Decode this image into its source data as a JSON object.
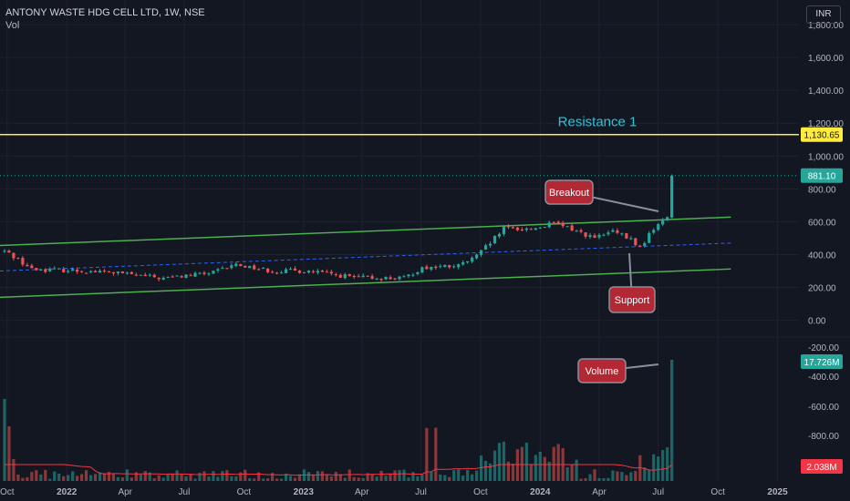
{
  "header": {
    "title": "ANTONY WASTE HDG CELL LTD, 1W, NSE",
    "indicator": "Vol",
    "currency": "INR"
  },
  "colors": {
    "background": "#131722",
    "grid": "#1e222d",
    "up": "#26a69a",
    "down": "#ef5350",
    "channel": "#4caf50",
    "midline": "#2962ff",
    "resistance": "#ffeb3b",
    "callout": "#b22834",
    "annotation_text": "#26c6da",
    "volume_ma": "#f23645"
  },
  "chart_data": {
    "type": "candlestick",
    "interval": "1W",
    "exchange": "NSE",
    "price_axis": {
      "ticks": [
        1800,
        1600,
        1400,
        1200,
        1000,
        800,
        600,
        400,
        200,
        0
      ],
      "tick_labels": [
        "1,800.00",
        "1,600.00",
        "1,400.00",
        "1,200.00",
        "1,000.00",
        "800.00",
        "600.00",
        "400.00",
        "200.00",
        "0.00"
      ],
      "range": [
        -130,
        1950
      ]
    },
    "volume_axis": {
      "tick_labels": [
        "-200.00",
        "-400.00",
        "-600.00",
        "-800.00"
      ]
    },
    "x_axis": {
      "tick_labels": [
        "Oct",
        "2022",
        "Apr",
        "Jul",
        "Oct",
        "2023",
        "Apr",
        "Jul",
        "Oct",
        "2024",
        "Apr",
        "Jul",
        "Oct",
        "2025"
      ],
      "range": [
        "2021-09-20",
        "2025-02-03"
      ]
    },
    "price_labels": {
      "resistance": "1,130.65",
      "last_price": "881.10",
      "last_volume": "17.726M",
      "volume_ma": "2.038M"
    },
    "levels": {
      "resistance": 1130.65,
      "last_price": 881.1
    },
    "channel": {
      "upper": [
        {
          "date": "2021-09-20",
          "value": 455
        },
        {
          "date": "2024-10-21",
          "value": 628
        }
      ],
      "lower": [
        {
          "date": "2021-09-20",
          "value": 140
        },
        {
          "date": "2024-10-21",
          "value": 312
        }
      ],
      "middle": [
        {
          "date": "2021-09-20",
          "value": 300
        },
        {
          "date": "2024-10-21",
          "value": 470
        }
      ]
    },
    "annotations": [
      {
        "text": "Resistance 1"
      },
      {
        "text": "Breakout"
      },
      {
        "text": "Support"
      },
      {
        "text": "Volume"
      }
    ],
    "series": [
      {
        "name": "price",
        "anchors": [
          {
            "date": "2021-09-27",
            "value": 420
          },
          {
            "date": "2021-10-11",
            "value": 390
          },
          {
            "date": "2021-11-08",
            "value": 310
          },
          {
            "date": "2022-01-03",
            "value": 305
          },
          {
            "date": "2022-03-14",
            "value": 290
          },
          {
            "date": "2022-05-30",
            "value": 255
          },
          {
            "date": "2022-08-15",
            "value": 290
          },
          {
            "date": "2022-09-19",
            "value": 340
          },
          {
            "date": "2022-11-14",
            "value": 300
          },
          {
            "date": "2023-01-09",
            "value": 300
          },
          {
            "date": "2023-03-20",
            "value": 260
          },
          {
            "date": "2023-06-05",
            "value": 255
          },
          {
            "date": "2023-07-03",
            "value": 320
          },
          {
            "date": "2023-08-28",
            "value": 330
          },
          {
            "date": "2023-09-25",
            "value": 390
          },
          {
            "date": "2023-10-16",
            "value": 470
          },
          {
            "date": "2023-11-06",
            "value": 560
          },
          {
            "date": "2023-12-18",
            "value": 555
          },
          {
            "date": "2024-01-22",
            "value": 590
          },
          {
            "date": "2024-02-19",
            "value": 555
          },
          {
            "date": "2024-03-25",
            "value": 500
          },
          {
            "date": "2024-04-22",
            "value": 540
          },
          {
            "date": "2024-05-20",
            "value": 490
          },
          {
            "date": "2024-06-03",
            "value": 440
          },
          {
            "date": "2024-06-24",
            "value": 560
          },
          {
            "date": "2024-07-15",
            "value": 630
          },
          {
            "date": "2024-07-22",
            "value": 881.1
          }
        ]
      },
      {
        "name": "volume",
        "values_millions": {
          "max_shown": 17.726,
          "ma_last": 2.038
        }
      }
    ]
  }
}
